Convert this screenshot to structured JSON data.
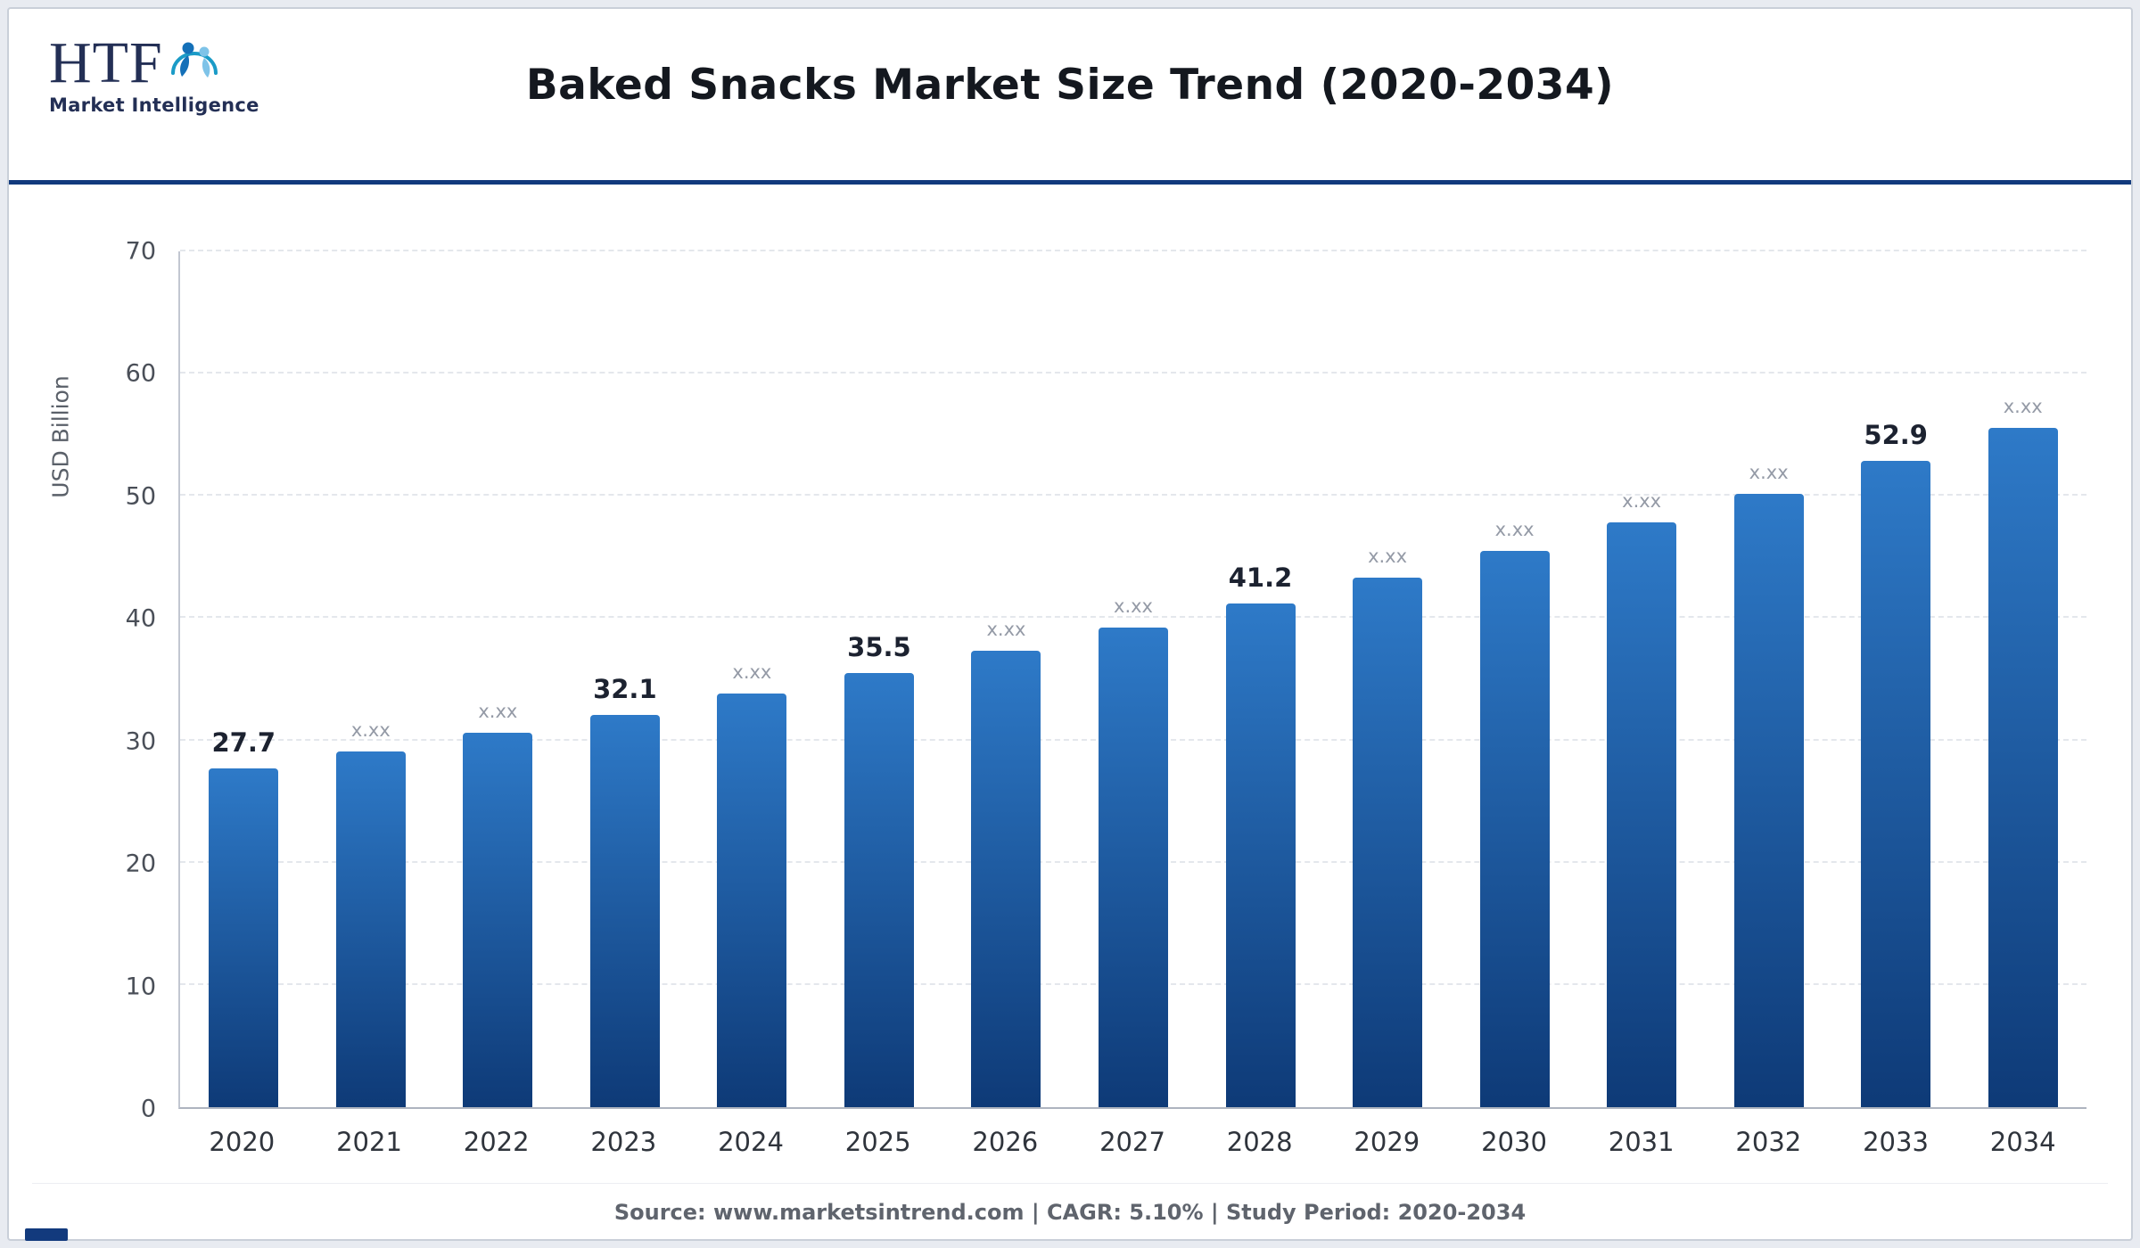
{
  "logo": {
    "abbr": "HTF",
    "subtitle": "Market Intelligence"
  },
  "footer": {
    "text": "Source: www.marketsintrend.com  |  CAGR: 5.10%  |  Study Period: 2020-2034"
  },
  "colors": {
    "accent": "#123a7d",
    "bar_top": "#2e7ac8",
    "bar_bottom": "#0e3a77",
    "gridline": "#e4e7ec"
  },
  "chart_data": {
    "type": "bar",
    "title": "Baked Snacks Market Size Trend (2020-2034)",
    "xlabel": "",
    "ylabel": "USD Billion",
    "ylim": [
      0,
      70
    ],
    "yticks": [
      0,
      10,
      20,
      30,
      40,
      50,
      60,
      70
    ],
    "grid": "dashed-horizontal",
    "legend": "none",
    "categories": [
      "2020",
      "2021",
      "2022",
      "2023",
      "2024",
      "2025",
      "2026",
      "2027",
      "2028",
      "2029",
      "2030",
      "2031",
      "2032",
      "2033",
      "2034"
    ],
    "values": [
      27.7,
      29.1,
      30.6,
      32.1,
      33.8,
      35.5,
      37.3,
      39.2,
      41.2,
      43.3,
      45.5,
      47.8,
      50.2,
      52.9,
      55.6
    ],
    "bar_labels": [
      "27.7",
      "x.xx",
      "x.xx",
      "32.1",
      "x.xx",
      "35.5",
      "x.xx",
      "x.xx",
      "41.2",
      "x.xx",
      "x.xx",
      "x.xx",
      "x.xx",
      "52.9",
      "x.xx"
    ],
    "bar_label_emphasized": [
      true,
      false,
      false,
      true,
      false,
      true,
      false,
      false,
      true,
      false,
      false,
      false,
      false,
      true,
      false
    ]
  }
}
